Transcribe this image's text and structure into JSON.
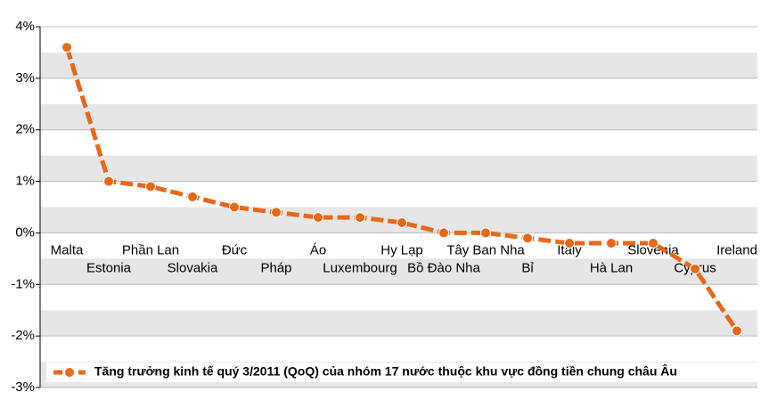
{
  "chart_data": {
    "type": "line",
    "categories": [
      "Malta",
      "Estonia",
      "Phần Lan",
      "Slovakia",
      "Đức",
      "Pháp",
      "Áo",
      "Luxembourg",
      "Hy Lạp",
      "Bồ Đào Nha",
      "Tây Ban Nha",
      "Bỉ",
      "Italy",
      "Hà Lan",
      "Slovenia",
      "Cyprus",
      "Ireland"
    ],
    "series": [
      {
        "name": "Tăng trưởng kinh tế quý 3/2011 (QoQ) của nhóm 17 nước thuộc khu vực đồng tiền chung châu Âu",
        "color": "#e8681a",
        "values": [
          3.6,
          1.0,
          0.9,
          0.7,
          0.5,
          0.4,
          0.3,
          0.3,
          0.2,
          0.0,
          0.0,
          -0.1,
          -0.2,
          -0.2,
          -0.2,
          -0.7,
          -1.9
        ]
      }
    ],
    "ylim": [
      -3,
      4
    ],
    "yticks": [
      {
        "value": -3,
        "label": "-3%"
      },
      {
        "value": -2,
        "label": "-2%"
      },
      {
        "value": -1,
        "label": "-1%"
      },
      {
        "value": 0,
        "label": "0%"
      },
      {
        "value": 1,
        "label": "1%"
      },
      {
        "value": 2,
        "label": "2%"
      },
      {
        "value": 3,
        "label": "3%"
      },
      {
        "value": 4,
        "label": "4%"
      }
    ],
    "grid": true,
    "legend": "bottom"
  }
}
